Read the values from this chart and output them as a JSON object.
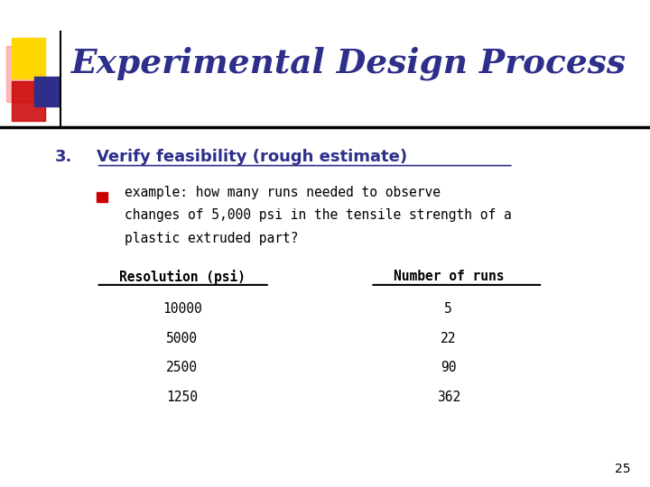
{
  "title": "Experimental Design Process",
  "title_color": "#2E2E8B",
  "background_color": "#FFFFFF",
  "slide_number": "25",
  "heading_number": "3.",
  "heading_text": "Verify feasibility (rough estimate)",
  "heading_color": "#2E2E8B",
  "bullet_text_lines": [
    "example: how many runs needed to observe",
    "changes of 5,000 psi in the tensile strength of a",
    "plastic extruded part?"
  ],
  "bullet_color": "#000000",
  "col1_header": "Resolution (psi)",
  "col2_header": "Number of runs",
  "table_data": [
    [
      "10000",
      "5"
    ],
    [
      "5000",
      "22"
    ],
    [
      "2500",
      "90"
    ],
    [
      "1250",
      "362"
    ]
  ],
  "table_color": "#000000",
  "decoration_colors": {
    "yellow": "#FFD700",
    "red": "#CC0000",
    "blue": "#2E2E8B",
    "pink": "#FF8080"
  }
}
